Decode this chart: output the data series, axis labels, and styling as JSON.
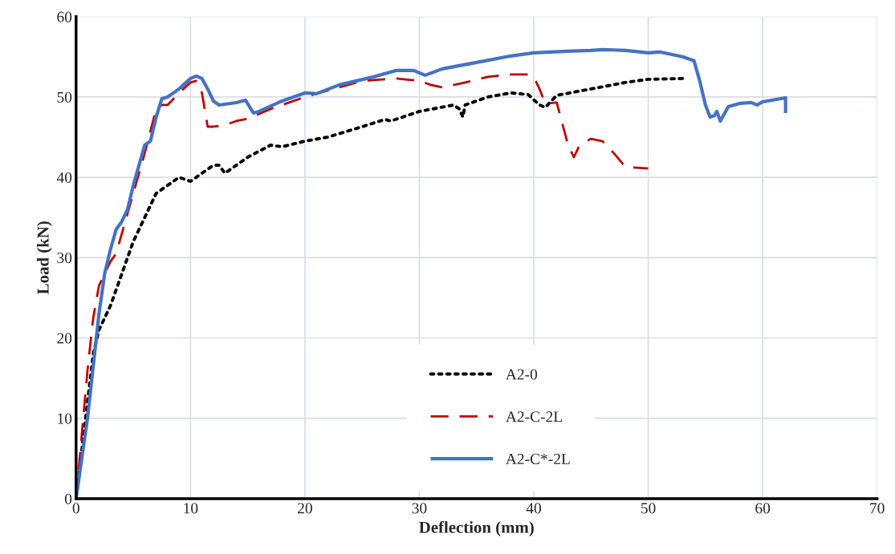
{
  "chart_data": {
    "type": "line",
    "xlabel": "Deflection (mm)",
    "ylabel": "Load (kN)",
    "xlim": [
      0,
      70
    ],
    "xticks": [
      0,
      10,
      20,
      30,
      40,
      50,
      60,
      70
    ],
    "ylim": [
      0,
      60
    ],
    "yticks": [
      0,
      10,
      20,
      30,
      40,
      50,
      60
    ],
    "grid": true,
    "legend": "bottom",
    "marker": "none",
    "series": [
      {
        "name": "A2-0",
        "color": "#000000",
        "line_style": "dotted",
        "x": [
          0,
          0.5,
          1,
          1.5,
          2,
          3,
          4,
          5,
          6,
          7,
          7.5,
          8,
          9,
          10,
          11,
          12,
          12.5,
          13,
          14,
          15,
          17,
          18,
          20,
          22,
          25,
          27,
          27.5,
          30,
          33,
          33.5,
          33.8,
          34,
          36,
          38,
          39.5,
          40.5,
          41,
          42,
          45,
          48,
          50,
          53
        ],
        "values": [
          0,
          6,
          12,
          18,
          21,
          24,
          28,
          32,
          35,
          38,
          38.5,
          39,
          40,
          39.5,
          40.5,
          41.5,
          41.5,
          40.5,
          41.5,
          42.5,
          44,
          43.8,
          44.5,
          45,
          46.3,
          47.2,
          47,
          48.2,
          49,
          48.5,
          47.5,
          49,
          50,
          50.5,
          50.3,
          49,
          48.7,
          50.2,
          51,
          51.8,
          52.2,
          52.3
        ]
      },
      {
        "name": "A2-C-2L",
        "color": "#c00000",
        "line_style": "dashed",
        "x": [
          0,
          0.5,
          1,
          1.5,
          2,
          2.5,
          3,
          3.5,
          4,
          4.5,
          5,
          6,
          7,
          7.5,
          8,
          9,
          10,
          10.5,
          11,
          11.5,
          12,
          13,
          14,
          15,
          17,
          20,
          25,
          28,
          30,
          31,
          32,
          34,
          36,
          38,
          39.5,
          40,
          40.5,
          41,
          42,
          43,
          43.5,
          44,
          45,
          46,
          47,
          48,
          50
        ],
        "values": [
          0,
          8,
          16,
          22.5,
          26.5,
          28,
          29.5,
          30.5,
          33,
          35.5,
          38,
          43,
          48.5,
          49,
          49,
          50.5,
          51.8,
          52,
          50.5,
          46.3,
          46.3,
          46.5,
          47,
          47.3,
          48.5,
          50,
          52,
          52.3,
          52,
          51.5,
          51.2,
          51.8,
          52.5,
          52.8,
          52.8,
          52.5,
          51,
          49.2,
          49.3,
          44,
          42.5,
          44,
          44.8,
          44.5,
          43,
          41.3,
          41.1
        ]
      },
      {
        "name": "A2-C*-2L",
        "color": "#4472c4",
        "line_style": "solid",
        "x": [
          0,
          1,
          2,
          2.5,
          3,
          3.5,
          4,
          4.5,
          5,
          5.5,
          6,
          6.5,
          7,
          7.5,
          8,
          9,
          10,
          10.5,
          11,
          11.5,
          12,
          12.5,
          14,
          14.8,
          15.5,
          16,
          18,
          19,
          20,
          21,
          23,
          26,
          28,
          29.5,
          30.5,
          32,
          35,
          38,
          40,
          43,
          45,
          46,
          48,
          50,
          51,
          53,
          54,
          54.5,
          55,
          55.4,
          55.8,
          56,
          56.3,
          57,
          58,
          59,
          59.5,
          60,
          62,
          62
        ],
        "values": [
          0,
          10,
          23,
          28,
          31,
          33.5,
          34.5,
          36,
          39,
          41.5,
          44,
          44.5,
          47.5,
          49.8,
          50,
          51,
          52.3,
          52.6,
          52.3,
          51,
          49.5,
          49,
          49.3,
          49.6,
          48,
          48.2,
          49.5,
          50,
          50.5,
          50.4,
          51.5,
          52.5,
          53.3,
          53.3,
          52.7,
          53.5,
          54.3,
          55.1,
          55.5,
          55.7,
          55.8,
          55.9,
          55.8,
          55.5,
          55.6,
          55,
          54.5,
          52,
          49,
          47.5,
          47.7,
          48.2,
          47,
          48.8,
          49.2,
          49.3,
          49,
          49.4,
          49.9,
          48
        ]
      }
    ]
  }
}
